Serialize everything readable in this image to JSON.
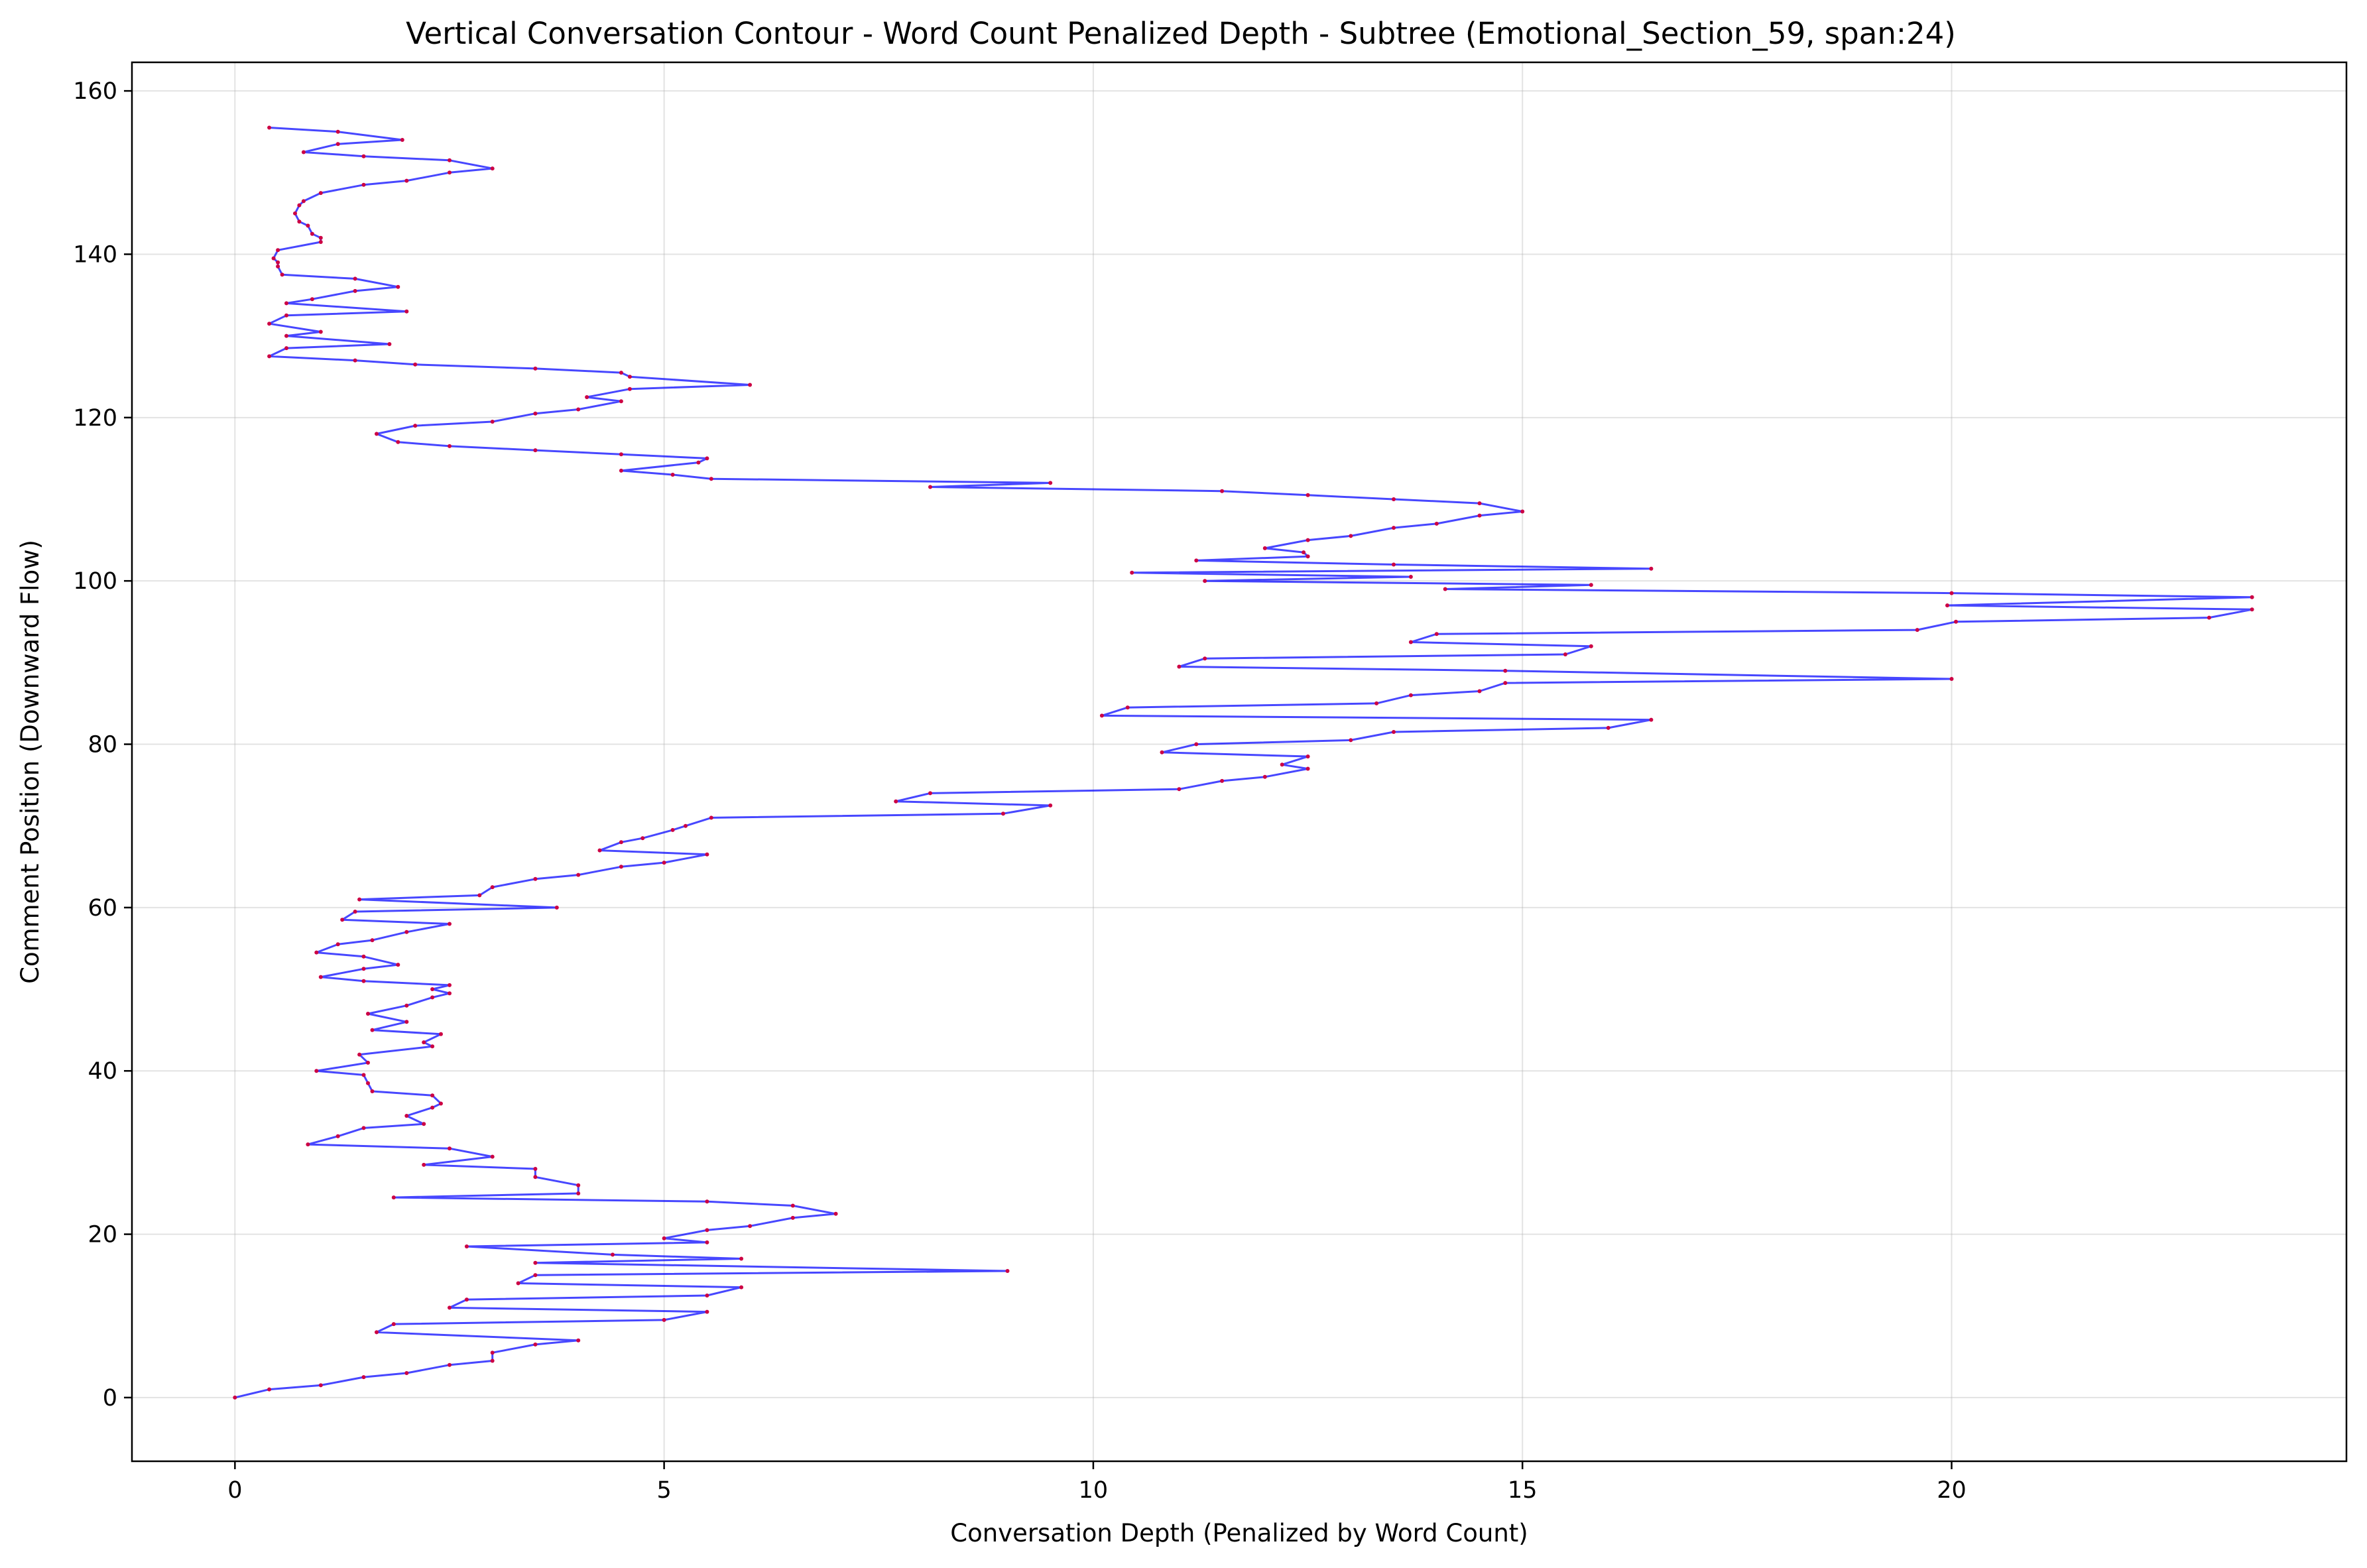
{
  "chart_data": {
    "type": "line",
    "title": "Vertical Conversation Contour - Word Count Penalized Depth - Subtree (Emotional_Section_59, span:24)",
    "xlabel": "Conversation Depth (Penalized by Word Count)",
    "ylabel": "Comment Position (Downward Flow)",
    "xlim": [
      -1.2,
      24.6
    ],
    "ylim": [
      -7.8,
      163.5
    ],
    "xticks": [
      0,
      5,
      10,
      15,
      20
    ],
    "yticks": [
      0,
      20,
      40,
      60,
      80,
      100,
      120,
      140,
      160
    ],
    "grid": true,
    "legend": "none",
    "colors": {
      "line": "#0000ff",
      "marker": "#cc0044"
    },
    "series": [
      {
        "points": [
          [
            0,
            0
          ],
          [
            0.4,
            1
          ],
          [
            1,
            1.5
          ],
          [
            1.5,
            2.5
          ],
          [
            2,
            3
          ],
          [
            2.5,
            4
          ],
          [
            3,
            4.5
          ],
          [
            3,
            5.5
          ],
          [
            3.5,
            6.5
          ],
          [
            4,
            7
          ],
          [
            1.65,
            8
          ],
          [
            1.85,
            9
          ],
          [
            5,
            9.5
          ],
          [
            5.5,
            10.5
          ],
          [
            2.5,
            11
          ],
          [
            2.7,
            12
          ],
          [
            5.5,
            12.5
          ],
          [
            5.9,
            13.5
          ],
          [
            3.3,
            14
          ],
          [
            3.5,
            15
          ],
          [
            9,
            15.5
          ],
          [
            3.5,
            16.5
          ],
          [
            5.9,
            17
          ],
          [
            4.4,
            17.5
          ],
          [
            2.7,
            18.5
          ],
          [
            5.5,
            19
          ],
          [
            5,
            19.5
          ],
          [
            5.5,
            20.5
          ],
          [
            6,
            21
          ],
          [
            6.5,
            22
          ],
          [
            7,
            22.5
          ],
          [
            6.5,
            23.5
          ],
          [
            5.5,
            24
          ],
          [
            1.85,
            24.5
          ],
          [
            4,
            25
          ],
          [
            4,
            26
          ],
          [
            3.5,
            27
          ],
          [
            3.5,
            28
          ],
          [
            2.2,
            28.5
          ],
          [
            3,
            29.5
          ],
          [
            2.5,
            30.5
          ],
          [
            0.85,
            31
          ],
          [
            1.2,
            32
          ],
          [
            1.5,
            33
          ],
          [
            2.2,
            33.5
          ],
          [
            2,
            34.5
          ],
          [
            2.3,
            35.5
          ],
          [
            2.4,
            36
          ],
          [
            2.3,
            37
          ],
          [
            1.6,
            37.5
          ],
          [
            1.55,
            38.5
          ],
          [
            1.5,
            39.5
          ],
          [
            0.95,
            40
          ],
          [
            1.55,
            41
          ],
          [
            1.45,
            42
          ],
          [
            2.3,
            43
          ],
          [
            2.2,
            43.5
          ],
          [
            2.4,
            44.5
          ],
          [
            1.6,
            45
          ],
          [
            2,
            46
          ],
          [
            1.55,
            47
          ],
          [
            2,
            48
          ],
          [
            2.3,
            49
          ],
          [
            2.5,
            49.5
          ],
          [
            2.3,
            50
          ],
          [
            2.5,
            50.5
          ],
          [
            1.5,
            51
          ],
          [
            1,
            51.5
          ],
          [
            1.5,
            52.5
          ],
          [
            1.9,
            53
          ],
          [
            1.5,
            54
          ],
          [
            0.95,
            54.5
          ],
          [
            1.2,
            55.5
          ],
          [
            1.6,
            56
          ],
          [
            2,
            57
          ],
          [
            2.5,
            58
          ],
          [
            1.25,
            58.5
          ],
          [
            1.4,
            59.5
          ],
          [
            3.75,
            60
          ],
          [
            1.45,
            61
          ],
          [
            2.85,
            61.5
          ],
          [
            3,
            62.5
          ],
          [
            3.5,
            63.5
          ],
          [
            4,
            64
          ],
          [
            4.5,
            65
          ],
          [
            5,
            65.5
          ],
          [
            5.5,
            66.5
          ],
          [
            4.25,
            67
          ],
          [
            4.5,
            68
          ],
          [
            4.75,
            68.5
          ],
          [
            5.1,
            69.5
          ],
          [
            5.25,
            70
          ],
          [
            5.55,
            71
          ],
          [
            8.95,
            71.5
          ],
          [
            9.5,
            72.5
          ],
          [
            7.7,
            73
          ],
          [
            8.1,
            74
          ],
          [
            11,
            74.5
          ],
          [
            11.5,
            75.5
          ],
          [
            12,
            76
          ],
          [
            12.5,
            77
          ],
          [
            12.2,
            77.5
          ],
          [
            12.5,
            78.5
          ],
          [
            10.8,
            79
          ],
          [
            11.2,
            80
          ],
          [
            13,
            80.5
          ],
          [
            13.5,
            81.5
          ],
          [
            16,
            82
          ],
          [
            16.5,
            83
          ],
          [
            10.1,
            83.5
          ],
          [
            10.4,
            84.5
          ],
          [
            13.3,
            85
          ],
          [
            13.7,
            86
          ],
          [
            14.5,
            86.5
          ],
          [
            14.8,
            87.5
          ],
          [
            20,
            88
          ],
          [
            14.8,
            89
          ],
          [
            11,
            89.5
          ],
          [
            11.3,
            90.5
          ],
          [
            15.5,
            91
          ],
          [
            15.8,
            92
          ],
          [
            13.7,
            92.5
          ],
          [
            14,
            93.5
          ],
          [
            19.6,
            94
          ],
          [
            20.05,
            95
          ],
          [
            23,
            95.5
          ],
          [
            23.5,
            96.5
          ],
          [
            19.95,
            97
          ],
          [
            23.5,
            98
          ],
          [
            20,
            98.5
          ],
          [
            14.1,
            99
          ],
          [
            15.8,
            99.5
          ],
          [
            11.3,
            100
          ],
          [
            13.7,
            100.5
          ],
          [
            10.45,
            101
          ],
          [
            16.5,
            101.5
          ],
          [
            13.5,
            102
          ],
          [
            11.2,
            102.5
          ],
          [
            12.5,
            103
          ],
          [
            12.45,
            103.5
          ],
          [
            12,
            104
          ],
          [
            12.5,
            105
          ],
          [
            13,
            105.5
          ],
          [
            13.5,
            106.5
          ],
          [
            14,
            107
          ],
          [
            14.5,
            108
          ],
          [
            15,
            108.5
          ],
          [
            14.5,
            109.5
          ],
          [
            13.5,
            110
          ],
          [
            12.5,
            110.5
          ],
          [
            11.5,
            111
          ],
          [
            8.1,
            111.5
          ],
          [
            9.5,
            112
          ],
          [
            5.55,
            112.5
          ],
          [
            5.1,
            113
          ],
          [
            4.5,
            113.5
          ],
          [
            5.4,
            114.5
          ],
          [
            5.5,
            115
          ],
          [
            4.5,
            115.5
          ],
          [
            3.5,
            116
          ],
          [
            2.5,
            116.5
          ],
          [
            1.9,
            117
          ],
          [
            1.65,
            118
          ],
          [
            2.1,
            119
          ],
          [
            3,
            119.5
          ],
          [
            3.5,
            120.5
          ],
          [
            4,
            121
          ],
          [
            4.5,
            122
          ],
          [
            4.1,
            122.5
          ],
          [
            4.6,
            123.5
          ],
          [
            6,
            124
          ],
          [
            4.6,
            125
          ],
          [
            4.5,
            125.5
          ],
          [
            3.5,
            126
          ],
          [
            2.1,
            126.5
          ],
          [
            1.4,
            127
          ],
          [
            0.4,
            127.5
          ],
          [
            0.6,
            128.5
          ],
          [
            1.8,
            129
          ],
          [
            0.6,
            130
          ],
          [
            1,
            130.5
          ],
          [
            0.4,
            131.5
          ],
          [
            0.6,
            132.5
          ],
          [
            2,
            133
          ],
          [
            0.6,
            134
          ],
          [
            0.9,
            134.5
          ],
          [
            1.4,
            135.5
          ],
          [
            1.9,
            136
          ],
          [
            1.4,
            137
          ],
          [
            0.55,
            137.5
          ],
          [
            0.5,
            138.5
          ],
          [
            0.5,
            139
          ],
          [
            0.45,
            139.5
          ],
          [
            0.5,
            140.5
          ],
          [
            1,
            141.5
          ],
          [
            1,
            142
          ],
          [
            0.9,
            142.5
          ],
          [
            0.85,
            143.5
          ],
          [
            0.75,
            144
          ],
          [
            0.7,
            145
          ],
          [
            0.75,
            146
          ],
          [
            0.8,
            146.5
          ],
          [
            1,
            147.5
          ],
          [
            1.5,
            148.5
          ],
          [
            2,
            149
          ],
          [
            2.5,
            150
          ],
          [
            3,
            150.5
          ],
          [
            2.5,
            151.5
          ],
          [
            1.5,
            152
          ],
          [
            0.8,
            152.5
          ],
          [
            1.2,
            153.5
          ],
          [
            1.95,
            154
          ],
          [
            1.2,
            155
          ],
          [
            0.4,
            155.5
          ]
        ]
      }
    ]
  }
}
